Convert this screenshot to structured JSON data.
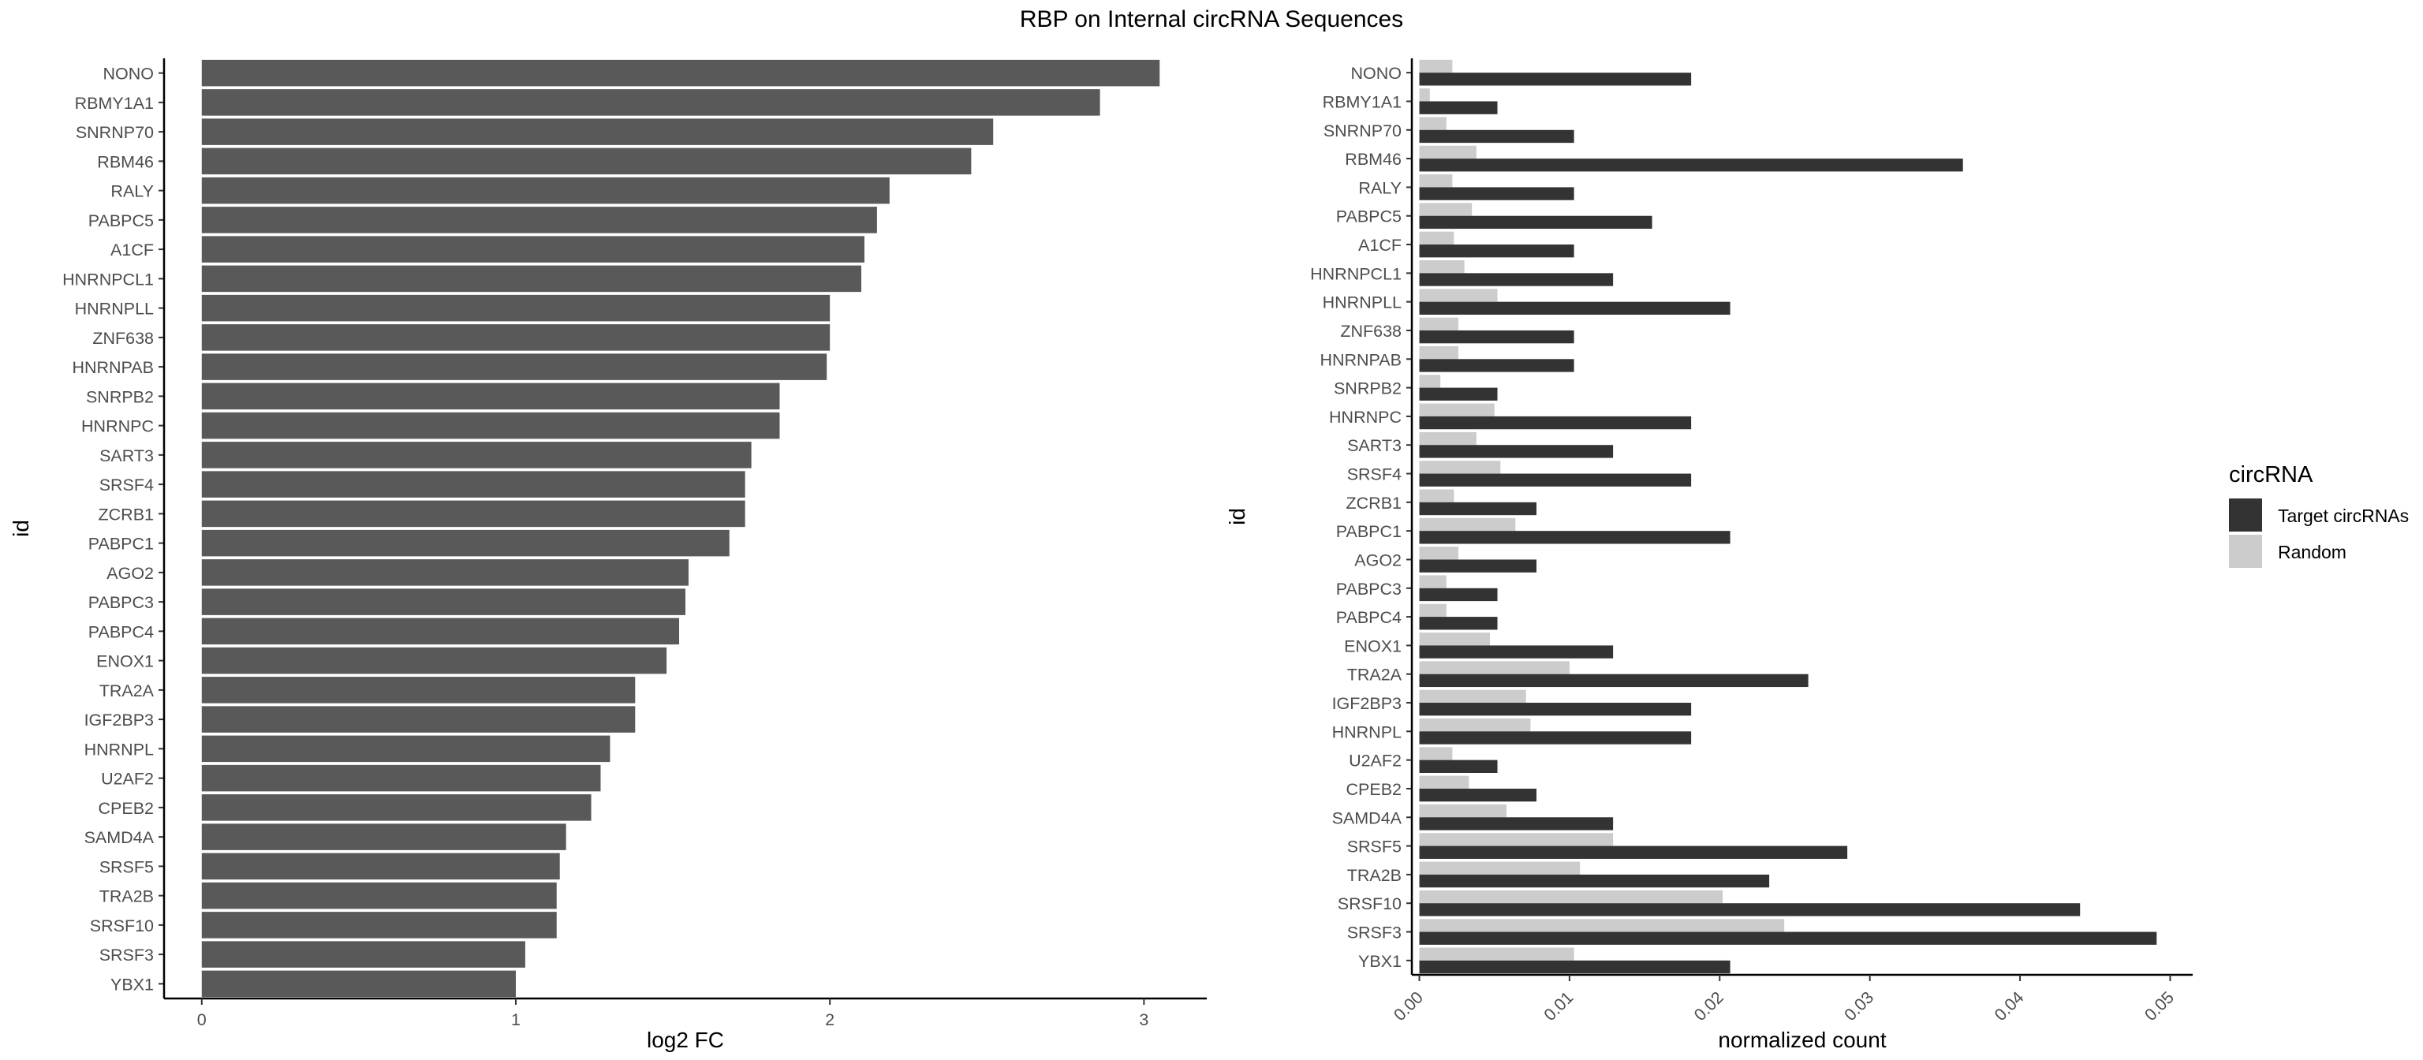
{
  "title": "RBP on Internal circRNA Sequences",
  "colors": {
    "bar_fc": "#595959",
    "target": "#333333",
    "random": "#cccccc",
    "axis": "#000000",
    "text": "#4d4d4d"
  },
  "chart_data": [
    {
      "type": "bar",
      "orientation": "horizontal",
      "xlabel": "log2 FC",
      "ylabel": "id",
      "xlim": [
        -0.12,
        3.2
      ],
      "xticks": [
        0,
        1,
        2,
        3
      ],
      "categories": [
        "NONO",
        "RBMY1A1",
        "SNRNP70",
        "RBM46",
        "RALY",
        "PABPC5",
        "A1CF",
        "HNRNPCL1",
        "HNRNPLL",
        "ZNF638",
        "HNRNPAB",
        "SNRPB2",
        "HNRNPC",
        "SART3",
        "SRSF4",
        "ZCRB1",
        "PABPC1",
        "AGO2",
        "PABPC3",
        "PABPC4",
        "ENOX1",
        "TRA2A",
        "IGF2BP3",
        "HNRNPL",
        "U2AF2",
        "CPEB2",
        "SAMD4A",
        "SRSF5",
        "TRA2B",
        "SRSF10",
        "SRSF3",
        "YBX1"
      ],
      "values": [
        3.05,
        2.86,
        2.52,
        2.45,
        2.19,
        2.15,
        2.11,
        2.1,
        2.0,
        2.0,
        1.99,
        1.84,
        1.84,
        1.75,
        1.73,
        1.73,
        1.68,
        1.55,
        1.54,
        1.52,
        1.48,
        1.38,
        1.38,
        1.3,
        1.27,
        1.24,
        1.16,
        1.14,
        1.13,
        1.13,
        1.03,
        1.0
      ]
    },
    {
      "type": "bar",
      "orientation": "horizontal",
      "grouped": true,
      "xlabel": "normalized count",
      "ylabel": "id",
      "xlim": [
        -0.0005,
        0.0515
      ],
      "xticks": [
        0.0,
        0.01,
        0.02,
        0.03,
        0.04,
        0.05
      ],
      "xtick_labels": [
        "0.00",
        "0.01",
        "0.02",
        "0.03",
        "0.04",
        "0.05"
      ],
      "legend": {
        "title": "circRNA",
        "position": "right"
      },
      "categories": [
        "NONO",
        "RBMY1A1",
        "SNRNP70",
        "RBM46",
        "RALY",
        "PABPC5",
        "A1CF",
        "HNRNPCL1",
        "HNRNPLL",
        "ZNF638",
        "HNRNPAB",
        "SNRPB2",
        "HNRNPC",
        "SART3",
        "SRSF4",
        "ZCRB1",
        "PABPC1",
        "AGO2",
        "PABPC3",
        "PABPC4",
        "ENOX1",
        "TRA2A",
        "IGF2BP3",
        "HNRNPL",
        "U2AF2",
        "CPEB2",
        "SAMD4A",
        "SRSF5",
        "TRA2B",
        "SRSF10",
        "SRSF3",
        "YBX1"
      ],
      "series": [
        {
          "name": "Target circRNAs",
          "color": "#333333",
          "values": [
            0.0181,
            0.0052,
            0.0103,
            0.0362,
            0.0103,
            0.0155,
            0.0103,
            0.0129,
            0.0207,
            0.0103,
            0.0103,
            0.0052,
            0.0181,
            0.0129,
            0.0181,
            0.0078,
            0.0207,
            0.0078,
            0.0052,
            0.0052,
            0.0129,
            0.0259,
            0.0181,
            0.0181,
            0.0052,
            0.0078,
            0.0129,
            0.0285,
            0.0233,
            0.044,
            0.0491,
            0.0207
          ]
        },
        {
          "name": "Random",
          "color": "#cccccc",
          "values": [
            0.0022,
            0.0007,
            0.0018,
            0.0038,
            0.0022,
            0.0035,
            0.0023,
            0.003,
            0.0052,
            0.0026,
            0.0026,
            0.0014,
            0.005,
            0.0038,
            0.0054,
            0.0023,
            0.0064,
            0.0026,
            0.0018,
            0.0018,
            0.0047,
            0.01,
            0.0071,
            0.0074,
            0.0022,
            0.0033,
            0.0058,
            0.0129,
            0.0107,
            0.0202,
            0.0243,
            0.0103
          ]
        }
      ]
    }
  ]
}
